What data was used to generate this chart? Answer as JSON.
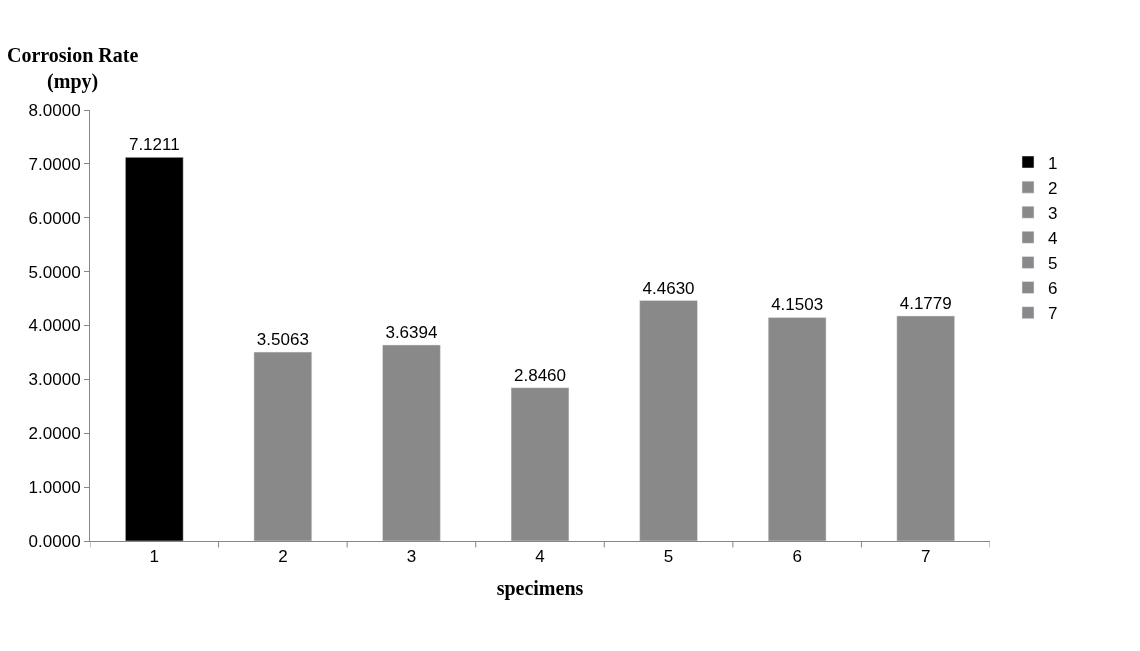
{
  "chart_data": {
    "type": "bar",
    "xlabel": "specimens",
    "ylabel": "Corrosion Rate\n(mpy)",
    "categories": [
      "1",
      "2",
      "3",
      "4",
      "5",
      "6",
      "7"
    ],
    "series": [
      {
        "name": "1",
        "color": "#000000",
        "values": [
          7.1211,
          null,
          null,
          null,
          null,
          null,
          null
        ],
        "value_labels": [
          "7.1211",
          null,
          null,
          null,
          null,
          null,
          null
        ]
      },
      {
        "name": "2",
        "color": "#898989",
        "values": [
          null,
          3.5063,
          null,
          null,
          null,
          null,
          null
        ],
        "value_labels": [
          null,
          "3.5063",
          null,
          null,
          null,
          null,
          null
        ]
      },
      {
        "name": "3",
        "color": "#898989",
        "values": [
          null,
          null,
          3.6394,
          null,
          null,
          null,
          null
        ],
        "value_labels": [
          null,
          null,
          "3.6394",
          null,
          null,
          null,
          null
        ]
      },
      {
        "name": "4",
        "color": "#898989",
        "values": [
          null,
          null,
          null,
          2.846,
          null,
          null,
          null
        ],
        "value_labels": [
          null,
          null,
          null,
          "2.8460",
          null,
          null,
          null
        ]
      },
      {
        "name": "5",
        "color": "#898989",
        "values": [
          null,
          null,
          null,
          null,
          4.463,
          null,
          null
        ],
        "value_labels": [
          null,
          null,
          null,
          null,
          "4.4630",
          null,
          null
        ]
      },
      {
        "name": "6",
        "color": "#898989",
        "values": [
          null,
          null,
          null,
          null,
          null,
          4.1503,
          null
        ],
        "value_labels": [
          null,
          null,
          null,
          null,
          null,
          "4.1503",
          null
        ]
      },
      {
        "name": "7",
        "color": "#898989",
        "values": [
          null,
          null,
          null,
          null,
          null,
          null,
          4.1779
        ],
        "value_labels": [
          null,
          null,
          null,
          null,
          null,
          null,
          "4.1779"
        ]
      }
    ],
    "ylim": [
      0,
      8
    ],
    "yticks": [
      {
        "value": 0,
        "label": "0.0000"
      },
      {
        "value": 1,
        "label": "1.0000"
      },
      {
        "value": 2,
        "label": "2.0000"
      },
      {
        "value": 3,
        "label": "3.0000"
      },
      {
        "value": 4,
        "label": "4.0000"
      },
      {
        "value": 5,
        "label": "5.0000"
      },
      {
        "value": 6,
        "label": "6.0000"
      },
      {
        "value": 7,
        "label": "7.0000"
      },
      {
        "value": 8,
        "label": "8.0000"
      }
    ],
    "legend": "right"
  }
}
